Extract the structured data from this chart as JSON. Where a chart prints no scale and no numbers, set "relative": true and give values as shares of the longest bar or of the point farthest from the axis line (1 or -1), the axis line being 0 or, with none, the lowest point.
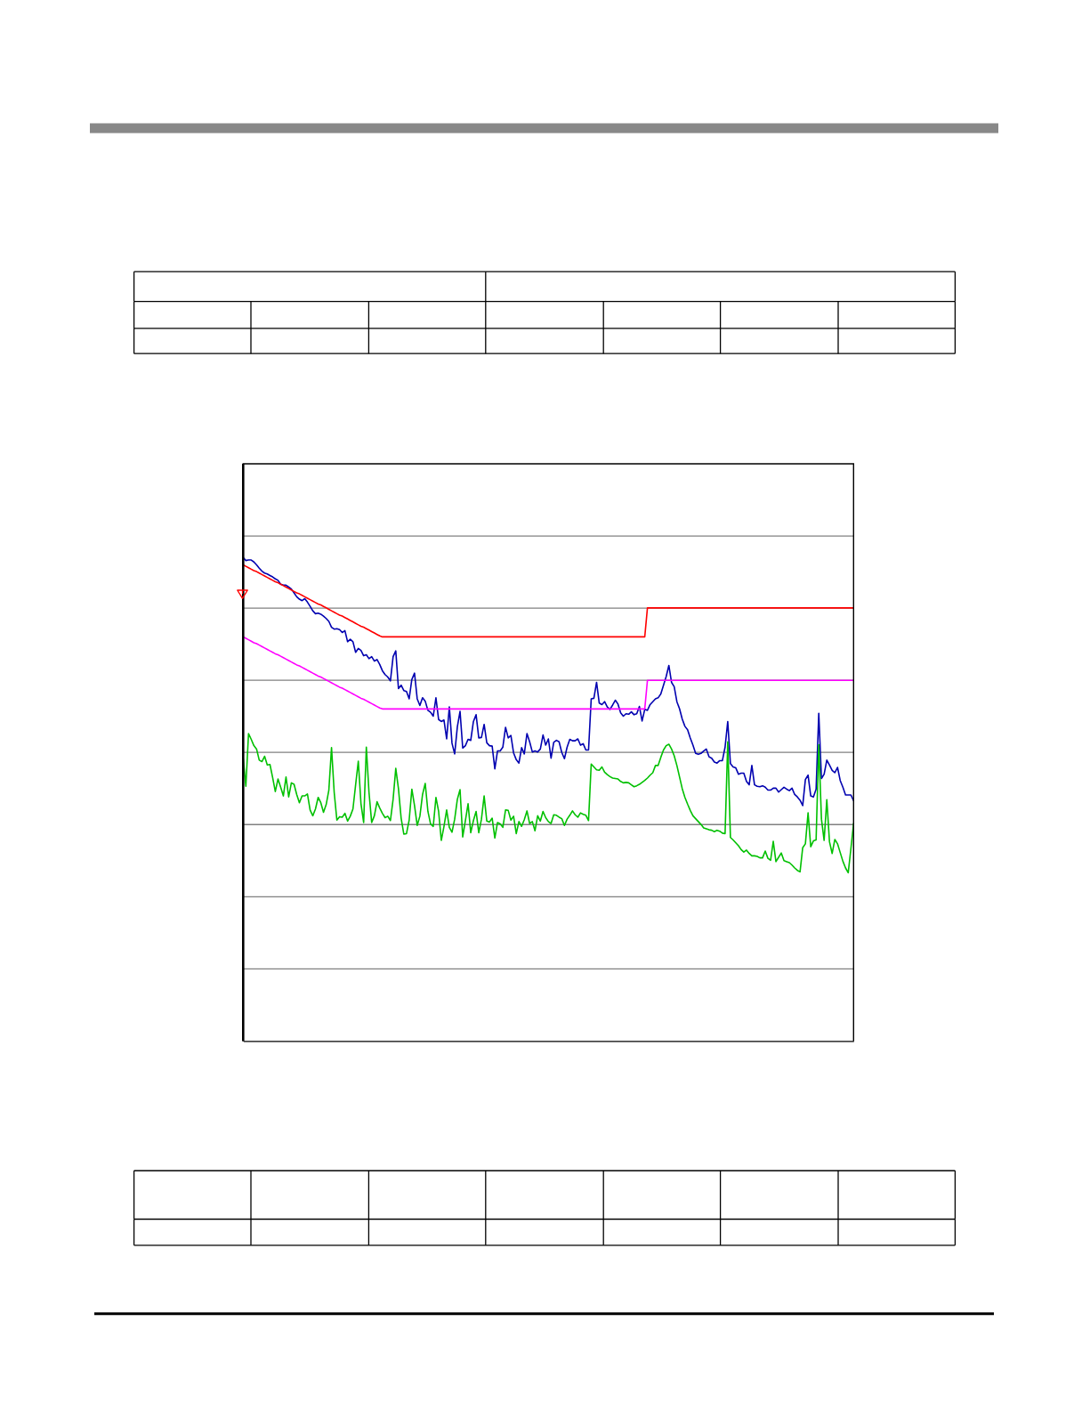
{
  "chart_data": {
    "type": "line",
    "relative": true,
    "grid": "y",
    "categories": [
      null,
      null,
      null,
      null,
      null,
      null,
      null,
      null,
      null,
      null,
      null,
      null,
      null,
      null,
      null,
      null,
      null,
      null,
      null,
      null,
      null,
      null,
      null,
      null,
      null,
      null,
      null,
      null,
      null,
      null,
      null,
      null,
      null,
      null,
      null,
      null,
      null,
      null,
      null,
      null,
      null,
      null,
      null,
      null,
      null,
      null,
      null,
      null,
      null,
      null,
      null,
      null,
      null,
      null,
      null,
      null,
      null,
      null,
      null,
      null,
      null,
      null,
      null,
      null,
      null,
      null,
      null,
      null,
      null,
      null,
      null,
      null,
      null,
      null,
      null,
      null,
      null,
      null,
      null,
      null,
      null,
      null,
      null,
      null,
      null,
      null,
      null,
      null,
      null,
      null,
      null,
      null,
      null,
      null,
      null,
      null,
      null,
      null,
      null,
      null,
      null,
      null,
      null,
      null,
      null,
      null,
      null,
      null,
      null,
      null,
      null,
      null,
      null,
      null,
      null,
      null,
      null,
      null,
      null,
      null,
      null,
      null,
      null,
      null,
      null,
      null,
      null,
      null,
      null,
      null,
      null,
      null,
      null,
      null,
      null,
      null,
      null,
      null,
      null,
      null,
      null,
      null,
      null,
      null,
      null,
      null,
      null,
      null,
      null,
      null,
      null,
      null,
      null,
      null,
      null,
      null,
      null,
      null,
      null,
      null,
      null,
      null,
      null,
      null,
      null,
      null,
      null,
      null,
      null,
      null,
      null,
      null,
      null,
      null,
      null,
      null,
      null,
      null,
      null,
      null,
      null,
      null,
      null,
      null,
      null,
      null,
      null,
      null,
      null,
      null,
      null,
      null,
      null,
      null,
      null,
      null,
      null,
      null,
      null,
      null,
      null,
      null,
      null,
      null,
      null,
      null,
      null,
      null,
      null,
      null,
      null,
      null,
      null,
      null,
      null,
      null,
      null,
      null,
      null,
      null,
      null,
      null,
      null,
      null,
      null,
      null,
      null,
      null,
      null
    ],
    "series": [
      {
        "color": "#0000b0",
        "values": [
          1.0,
          0.994,
          0.995,
          0.995,
          0.991,
          0.985,
          0.978,
          0.972,
          0.968,
          0.966,
          0.963,
          0.96,
          0.956,
          0.953,
          0.945,
          0.943,
          0.943,
          0.939,
          0.935,
          0.927,
          0.919,
          0.914,
          0.911,
          0.915,
          0.908,
          0.899,
          0.89,
          0.884,
          0.885,
          0.883,
          0.879,
          0.874,
          0.868,
          0.856,
          0.852,
          0.853,
          0.851,
          0.845,
          0.849,
          0.826,
          0.831,
          0.826,
          0.804,
          0.812,
          0.808,
          0.797,
          0.799,
          0.791,
          0.795,
          0.786,
          0.789,
          0.779,
          0.766,
          0.758,
          0.753,
          0.745,
          0.795,
          0.807,
          0.729,
          0.736,
          0.725,
          0.723,
          0.708,
          0.748,
          0.761,
          0.708,
          0.694,
          0.71,
          0.703,
          0.684,
          0.68,
          0.672,
          0.71,
          0.665,
          0.661,
          0.664,
          0.625,
          0.691,
          0.616,
          0.594,
          0.65,
          0.682,
          0.606,
          0.611,
          0.624,
          0.622,
          0.661,
          0.675,
          0.627,
          0.628,
          0.655,
          0.617,
          0.611,
          0.61,
          0.563,
          0.6,
          0.6,
          0.608,
          0.649,
          0.627,
          0.632,
          0.596,
          0.582,
          0.575,
          0.607,
          0.594,
          0.636,
          0.619,
          0.598,
          0.6,
          0.598,
          0.604,
          0.633,
          0.612,
          0.625,
          0.585,
          0.618,
          0.622,
          0.619,
          0.597,
          0.584,
          0.608,
          0.624,
          0.621,
          0.621,
          0.625,
          0.612,
          0.615,
          0.602,
          0.602,
          0.708,
          0.709,
          0.742,
          0.699,
          0.696,
          0.702,
          0.691,
          0.686,
          0.695,
          0.705,
          0.697,
          0.679,
          0.672,
          0.677,
          0.676,
          0.681,
          0.675,
          0.677,
          0.692,
          0.662,
          0.686,
          0.684,
          0.696,
          0.702,
          0.708,
          0.71,
          0.718,
          0.736,
          0.754,
          0.777,
          0.742,
          0.733,
          0.702,
          0.687,
          0.666,
          0.651,
          0.644,
          0.627,
          0.612,
          0.595,
          0.593,
          0.595,
          0.6,
          0.604,
          0.588,
          0.585,
          0.577,
          0.575,
          0.58,
          0.58,
          0.608,
          0.661,
          0.574,
          0.567,
          0.565,
          0.552,
          0.554,
          0.554,
          0.537,
          0.53,
          0.57,
          0.53,
          0.527,
          0.526,
          0.528,
          0.525,
          0.519,
          0.519,
          0.523,
          0.523,
          0.515,
          0.52,
          0.525,
          0.521,
          0.518,
          0.523,
          0.51,
          0.505,
          0.498,
          0.487,
          0.541,
          0.55,
          0.507,
          0.505,
          0.521,
          0.678,
          0.543,
          0.552,
          0.581,
          0.571,
          0.56,
          0.555,
          0.566,
          0.539,
          0.525,
          0.509,
          0.509,
          0.509,
          0.497
        ]
      },
      {
        "color": "#00c000",
        "values": [
          0.585,
          0.527,
          0.636,
          0.624,
          0.611,
          0.604,
          0.581,
          0.578,
          0.589,
          0.571,
          0.572,
          0.545,
          0.516,
          0.542,
          0.525,
          0.507,
          0.546,
          0.505,
          0.534,
          0.531,
          0.51,
          0.493,
          0.507,
          0.507,
          0.511,
          0.478,
          0.466,
          0.48,
          0.504,
          0.493,
          0.473,
          0.489,
          0.519,
          0.607,
          0.514,
          0.457,
          0.464,
          0.463,
          0.471,
          0.455,
          0.465,
          0.48,
          0.53,
          0.579,
          0.491,
          0.452,
          0.608,
          0.514,
          0.452,
          0.466,
          0.495,
          0.482,
          0.471,
          0.462,
          0.465,
          0.456,
          0.5,
          0.564,
          0.522,
          0.461,
          0.428,
          0.429,
          0.457,
          0.521,
          0.487,
          0.446,
          0.465,
          0.51,
          0.533,
          0.475,
          0.449,
          0.444,
          0.504,
          0.475,
          0.415,
          0.444,
          0.478,
          0.442,
          0.432,
          0.459,
          0.5,
          0.52,
          0.422,
          0.456,
          0.491,
          0.431,
          0.456,
          0.475,
          0.431,
          0.459,
          0.507,
          0.455,
          0.453,
          0.461,
          0.42,
          0.452,
          0.449,
          0.442,
          0.478,
          0.477,
          0.457,
          0.465,
          0.429,
          0.454,
          0.444,
          0.458,
          0.476,
          0.45,
          0.454,
          0.435,
          0.466,
          0.455,
          0.475,
          0.462,
          0.454,
          0.45,
          0.468,
          0.467,
          0.463,
          0.46,
          0.446,
          0.459,
          0.467,
          0.476,
          0.468,
          0.463,
          0.472,
          0.469,
          0.467,
          0.456,
          0.573,
          0.567,
          0.561,
          0.56,
          0.567,
          0.556,
          0.551,
          0.547,
          0.544,
          0.543,
          0.542,
          0.537,
          0.534,
          0.535,
          0.534,
          0.53,
          0.526,
          0.528,
          0.531,
          0.535,
          0.539,
          0.544,
          0.55,
          0.555,
          0.57,
          0.57,
          0.587,
          0.602,
          0.611,
          0.614,
          0.604,
          0.59,
          0.57,
          0.546,
          0.522,
          0.504,
          0.49,
          0.477,
          0.466,
          0.46,
          0.454,
          0.448,
          0.441,
          0.439,
          0.437,
          0.436,
          0.433,
          0.436,
          0.434,
          0.43,
          0.429,
          0.619,
          0.421,
          0.416,
          0.41,
          0.404,
          0.396,
          0.391,
          0.395,
          0.388,
          0.383,
          0.383,
          0.382,
          0.379,
          0.379,
          0.393,
          0.378,
          0.374,
          0.413,
          0.371,
          0.38,
          0.389,
          0.373,
          0.371,
          0.369,
          0.364,
          0.358,
          0.353,
          0.35,
          0.4,
          0.408,
          0.472,
          0.402,
          0.414,
          0.416,
          0.613,
          0.459,
          0.415,
          0.499,
          0.412,
          0.388,
          0.417,
          0.408,
          0.39,
          0.372,
          0.358,
          0.348,
          0.398,
          0.45
        ]
      },
      {
        "color": "#ff0000",
        "values": [
          0.985,
          0.982,
          0.979,
          0.976,
          0.973,
          0.971,
          0.968,
          0.965,
          0.962,
          0.959,
          0.956,
          0.953,
          0.95,
          0.948,
          0.945,
          0.942,
          0.939,
          0.936,
          0.933,
          0.93,
          0.927,
          0.925,
          0.922,
          0.919,
          0.916,
          0.913,
          0.91,
          0.907,
          0.904,
          0.902,
          0.899,
          0.896,
          0.893,
          0.89,
          0.887,
          0.884,
          0.881,
          0.879,
          0.876,
          0.873,
          0.87,
          0.867,
          0.864,
          0.861,
          0.858,
          0.856,
          0.853,
          0.85,
          0.847,
          0.844,
          0.841,
          0.838,
          0.836,
          0.836,
          0.836,
          0.836,
          0.836,
          0.836,
          0.836,
          0.836,
          0.836,
          0.836,
          0.836,
          0.836,
          0.836,
          0.836,
          0.836,
          0.836,
          0.836,
          0.836,
          0.836,
          0.836,
          0.836,
          0.836,
          0.836,
          0.836,
          0.836,
          0.836,
          0.836,
          0.836,
          0.836,
          0.836,
          0.836,
          0.836,
          0.836,
          0.836,
          0.836,
          0.836,
          0.836,
          0.836,
          0.836,
          0.836,
          0.836,
          0.836,
          0.836,
          0.836,
          0.836,
          0.836,
          0.836,
          0.836,
          0.836,
          0.836,
          0.836,
          0.836,
          0.836,
          0.836,
          0.836,
          0.836,
          0.836,
          0.836,
          0.836,
          0.836,
          0.836,
          0.836,
          0.836,
          0.836,
          0.836,
          0.836,
          0.836,
          0.836,
          0.836,
          0.836,
          0.836,
          0.836,
          0.836,
          0.836,
          0.836,
          0.836,
          0.836,
          0.836,
          0.836,
          0.836,
          0.836,
          0.836,
          0.836,
          0.836,
          0.836,
          0.836,
          0.836,
          0.836,
          0.836,
          0.836,
          0.836,
          0.836,
          0.836,
          0.836,
          0.836,
          0.836,
          0.836,
          0.836,
          0.836,
          0.896,
          0.896,
          0.896,
          0.896,
          0.896,
          0.896,
          0.896,
          0.896,
          0.896,
          0.896,
          0.896,
          0.896,
          0.896,
          0.896,
          0.896,
          0.896,
          0.896,
          0.896,
          0.896,
          0.896,
          0.896,
          0.896,
          0.896,
          0.896,
          0.896,
          0.896,
          0.896,
          0.896,
          0.896,
          0.896,
          0.896,
          0.896,
          0.896,
          0.896,
          0.896,
          0.896,
          0.896,
          0.896,
          0.896,
          0.896,
          0.896,
          0.896,
          0.896,
          0.896,
          0.896,
          0.896,
          0.896,
          0.896,
          0.896,
          0.896,
          0.896,
          0.896,
          0.896,
          0.896,
          0.896,
          0.896,
          0.896,
          0.896,
          0.896,
          0.896,
          0.896,
          0.896,
          0.896,
          0.896,
          0.896,
          0.896,
          0.896,
          0.896,
          0.896,
          0.896,
          0.896,
          0.896,
          0.896,
          0.896,
          0.896,
          0.896,
          0.896,
          0.896
        ]
      },
      {
        "color": "#ff00ff",
        "values": [
          0.836,
          0.833,
          0.83,
          0.827,
          0.824,
          0.822,
          0.819,
          0.816,
          0.813,
          0.81,
          0.807,
          0.804,
          0.801,
          0.799,
          0.796,
          0.793,
          0.79,
          0.787,
          0.784,
          0.781,
          0.778,
          0.776,
          0.773,
          0.77,
          0.767,
          0.764,
          0.761,
          0.758,
          0.755,
          0.753,
          0.75,
          0.747,
          0.744,
          0.741,
          0.738,
          0.735,
          0.732,
          0.73,
          0.727,
          0.724,
          0.721,
          0.718,
          0.715,
          0.712,
          0.709,
          0.707,
          0.704,
          0.701,
          0.698,
          0.695,
          0.692,
          0.689,
          0.687,
          0.687,
          0.687,
          0.687,
          0.687,
          0.687,
          0.687,
          0.687,
          0.687,
          0.687,
          0.687,
          0.687,
          0.687,
          0.687,
          0.687,
          0.687,
          0.687,
          0.687,
          0.687,
          0.687,
          0.687,
          0.687,
          0.687,
          0.687,
          0.687,
          0.687,
          0.687,
          0.687,
          0.687,
          0.687,
          0.687,
          0.687,
          0.687,
          0.687,
          0.687,
          0.687,
          0.687,
          0.687,
          0.687,
          0.687,
          0.687,
          0.687,
          0.687,
          0.687,
          0.687,
          0.687,
          0.687,
          0.687,
          0.687,
          0.687,
          0.687,
          0.687,
          0.687,
          0.687,
          0.687,
          0.687,
          0.687,
          0.687,
          0.687,
          0.687,
          0.687,
          0.687,
          0.687,
          0.687,
          0.687,
          0.687,
          0.687,
          0.687,
          0.687,
          0.687,
          0.687,
          0.687,
          0.687,
          0.687,
          0.687,
          0.687,
          0.687,
          0.687,
          0.687,
          0.687,
          0.687,
          0.687,
          0.687,
          0.687,
          0.687,
          0.687,
          0.687,
          0.687,
          0.687,
          0.687,
          0.687,
          0.687,
          0.687,
          0.687,
          0.687,
          0.687,
          0.687,
          0.687,
          0.687,
          0.746,
          0.746,
          0.746,
          0.746,
          0.746,
          0.746,
          0.746,
          0.746,
          0.746,
          0.746,
          0.746,
          0.746,
          0.746,
          0.746,
          0.746,
          0.746,
          0.746,
          0.746,
          0.746,
          0.746,
          0.746,
          0.746,
          0.746,
          0.746,
          0.746,
          0.746,
          0.746,
          0.746,
          0.746,
          0.746,
          0.746,
          0.746,
          0.746,
          0.746,
          0.746,
          0.746,
          0.746,
          0.746,
          0.746,
          0.746,
          0.746,
          0.746,
          0.746,
          0.746,
          0.746,
          0.746,
          0.746,
          0.746,
          0.746,
          0.746,
          0.746,
          0.746,
          0.746,
          0.746,
          0.746,
          0.746,
          0.746,
          0.746,
          0.746,
          0.746,
          0.746,
          0.746,
          0.746,
          0.746,
          0.746,
          0.746,
          0.746,
          0.746,
          0.746,
          0.746,
          0.746,
          0.746,
          0.746,
          0.746,
          0.746,
          0.746,
          0.746,
          0.746
        ]
      }
    ]
  }
}
